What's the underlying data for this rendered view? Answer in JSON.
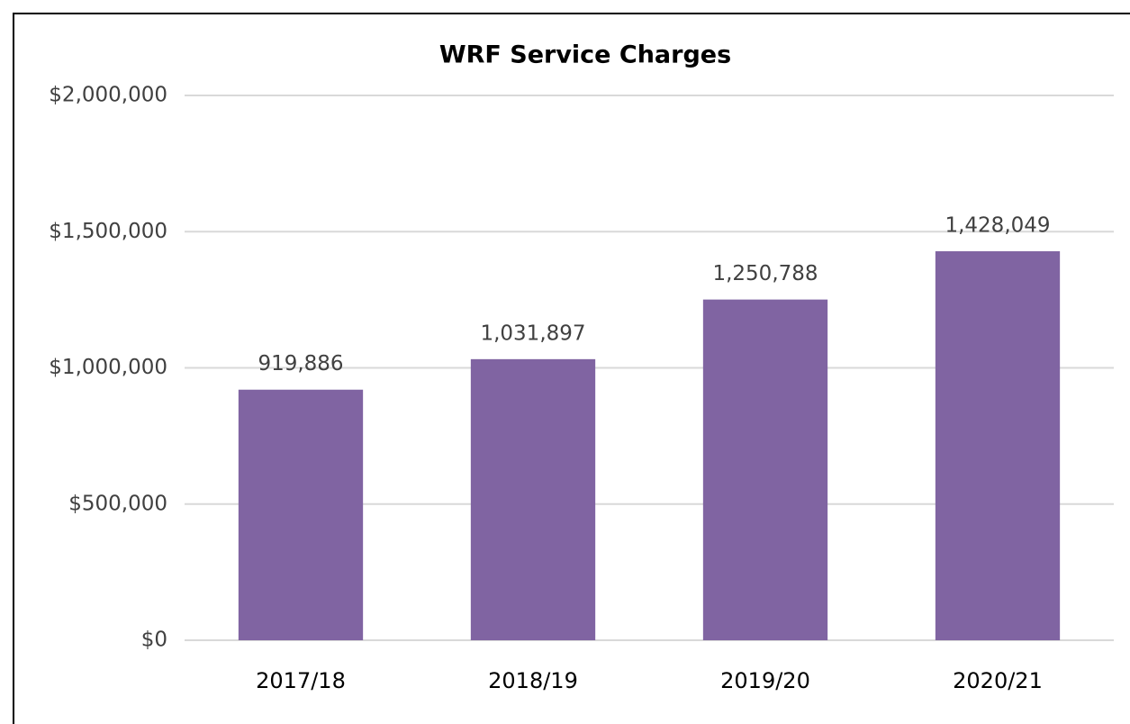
{
  "chart_data": {
    "type": "bar",
    "title": "WRF Service Charges",
    "categories": [
      "2017/18",
      "2018/19",
      "2019/20",
      "2020/21"
    ],
    "values": [
      919886,
      1031897,
      1250788,
      1428049
    ],
    "value_labels": [
      "919,886",
      "1,031,897",
      "1,250,788",
      "1,428,049"
    ],
    "color": "#8064a2",
    "ylim": [
      0,
      2000000
    ],
    "yticks": [
      {
        "value": 0,
        "label": "$0"
      },
      {
        "value": 500000,
        "label": "$500,000"
      },
      {
        "value": 1000000,
        "label": "$1,000,000"
      },
      {
        "value": 1500000,
        "label": "$1,500,000"
      },
      {
        "value": 2000000,
        "label": "$2,000,000"
      }
    ],
    "grid": true
  }
}
